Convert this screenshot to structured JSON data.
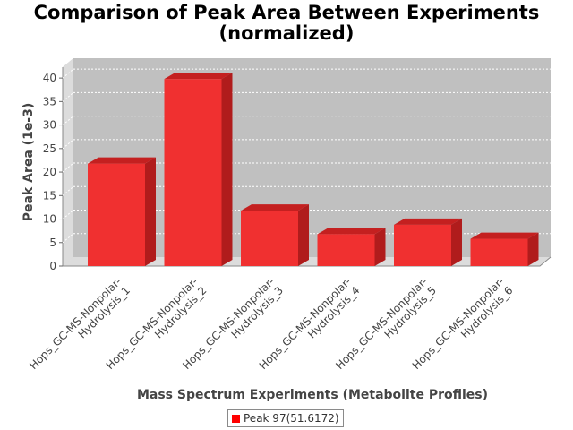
{
  "chart_data": {
    "type": "bar",
    "title": "Comparison of Peak Area Between Experiments",
    "title_line2": "(normalized)",
    "xlabel": "Mass Spectrum Experiments (Metabolite Profiles)",
    "ylabel": "Peak Area (1e-3)",
    "ylim": [
      0,
      40
    ],
    "yticks": [
      "0",
      "5",
      "10",
      "15",
      "20",
      "25",
      "30",
      "35",
      "40"
    ],
    "grid": true,
    "legend_position": "bottom",
    "categories": [
      [
        "Hops_GC-MS-Nonpolar-",
        "Hydrolysis_1"
      ],
      [
        "Hops_GC-MS-Nonpolar-",
        "Hydrolysis_2"
      ],
      [
        "Hops_GC-MS-Nonpolar-",
        "Hydrolysis_3"
      ],
      [
        "Hops_GC-MS-Nonpolar-",
        "Hydrolysis_4"
      ],
      [
        "Hops_GC-MS-Nonpolar-",
        "Hydrolysis_5"
      ],
      [
        "Hops_GC-MS-Nonpolar-",
        "Hydrolysis_6"
      ]
    ],
    "series": [
      {
        "name": "Peak 97(51.6172)",
        "values": [
          21.8,
          39.8,
          11.8,
          6.8,
          8.8,
          5.8
        ],
        "color": "#ff0000"
      }
    ]
  }
}
